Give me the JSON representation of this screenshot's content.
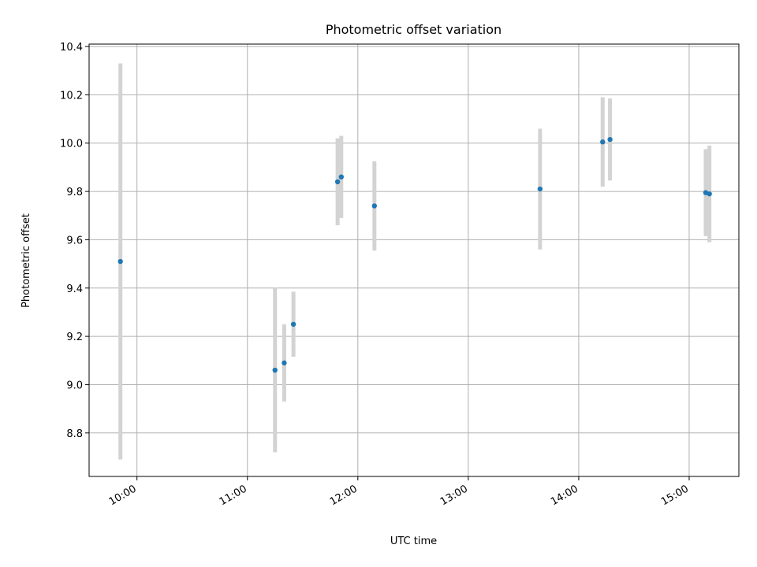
{
  "chart_data": {
    "type": "scatter",
    "title": "Photometric offset variation",
    "xlabel": "UTC time",
    "ylabel": "Photometric offset",
    "grid": true,
    "xlim": [
      "09:34",
      "15:27"
    ],
    "ylim": [
      8.62,
      10.41
    ],
    "x_ticks": [
      "10:00",
      "11:00",
      "12:00",
      "13:00",
      "14:00",
      "15:00"
    ],
    "y_ticks": [
      8.8,
      9.0,
      9.2,
      9.4,
      9.6,
      9.8,
      10.0,
      10.2,
      10.4
    ],
    "y_tick_labels": [
      "8.8",
      "9.0",
      "9.2",
      "9.4",
      "9.6",
      "9.8",
      "10.0",
      "10.2",
      "10.4"
    ],
    "colors": {
      "points": "#1f77b4",
      "error_bars": "#d3d3d3"
    },
    "points": [
      {
        "x": "09:51",
        "y": 9.51,
        "err": 0.82
      },
      {
        "x": "11:15",
        "y": 9.06,
        "err": 0.34
      },
      {
        "x": "11:20",
        "y": 9.09,
        "err": 0.16
      },
      {
        "x": "11:25",
        "y": 9.25,
        "err": 0.135
      },
      {
        "x": "11:49",
        "y": 9.84,
        "err": 0.18
      },
      {
        "x": "11:51",
        "y": 9.86,
        "err": 0.17
      },
      {
        "x": "12:09",
        "y": 9.74,
        "err": 0.185
      },
      {
        "x": "13:39",
        "y": 9.81,
        "err": 0.25
      },
      {
        "x": "14:13",
        "y": 10.005,
        "err": 0.185
      },
      {
        "x": "14:17",
        "y": 10.015,
        "err": 0.17
      },
      {
        "x": "15:09",
        "y": 9.795,
        "err": 0.18
      },
      {
        "x": "15:11",
        "y": 9.79,
        "err": 0.2
      }
    ]
  }
}
